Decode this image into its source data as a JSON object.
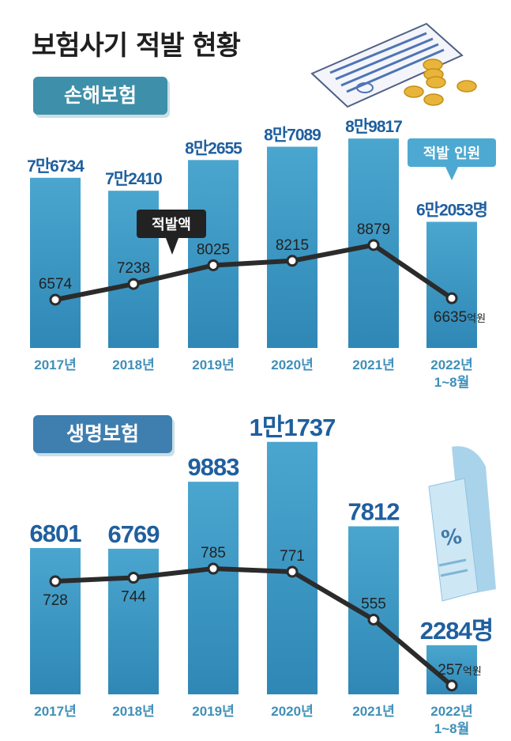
{
  "title": "보험사기 적발 현황",
  "colors": {
    "bar_top": "#4aa6cf",
    "bar_bottom": "#2f87b5",
    "bar_value_text": "#1f5f9e",
    "line": "#2b2b2b",
    "year_text": "#3f8fb8",
    "callout_dark": "#222222",
    "callout_blue": "#4da9d1"
  },
  "sections": [
    {
      "label": "손해보험",
      "chart_data": {
        "type": "bar",
        "categories": [
          "2017년",
          "2018년",
          "2019년",
          "2020년",
          "2021년",
          "2022년 1~8월"
        ],
        "bar_labels": [
          "7만6734",
          "7만2410",
          "8만2655",
          "8만7089",
          "8만9817",
          "6만2053명"
        ],
        "series": [
          {
            "name": "적발 인원",
            "unit": "명",
            "values": [
              76734,
              72410,
              82655,
              87089,
              89817,
              62053
            ]
          },
          {
            "name": "적발액",
            "unit": "억원",
            "values": [
              6574,
              7238,
              8025,
              8215,
              8879,
              6635
            ]
          }
        ],
        "line_labels": [
          "6574",
          "7238",
          "8025",
          "8215",
          "8879",
          "6635억원"
        ],
        "callouts": {
          "line": "적발액",
          "bar": "적발 인원"
        }
      }
    },
    {
      "label": "생명보험",
      "chart_data": {
        "type": "bar",
        "categories": [
          "2017년",
          "2018년",
          "2019년",
          "2020년",
          "2021년",
          "2022년 1~8월"
        ],
        "bar_labels": [
          "6801",
          "6769",
          "9883",
          "1만1737",
          "7812",
          "2284명"
        ],
        "series": [
          {
            "unit": "명",
            "values": [
              6801,
              6769,
              9883,
              11737,
              7812,
              2284
            ]
          },
          {
            "unit": "억원",
            "values": [
              728,
              744,
              785,
              771,
              555,
              257
            ]
          }
        ],
        "line_labels": [
          "728",
          "744",
          "785",
          "771",
          "555",
          "257억원"
        ]
      }
    }
  ]
}
